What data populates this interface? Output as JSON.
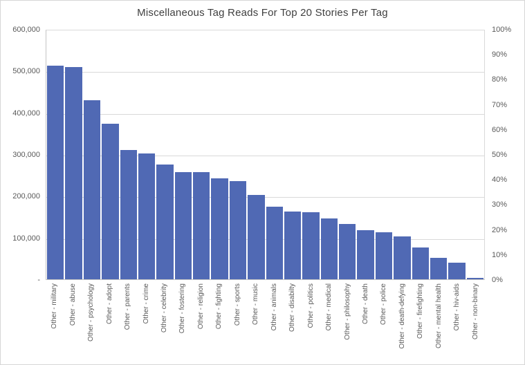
{
  "title": "Miscellaneous Tag Reads For Top 20 Stories Per Tag",
  "chart_data": {
    "type": "bar",
    "title": "Miscellaneous Tag Reads For Top 20 Stories Per Tag",
    "categories": [
      "Other - military",
      "Other - abuse",
      "Other - psychology",
      "Other - adopt",
      "Other - parents",
      "Other - crime",
      "Other - celebrity",
      "Other - fostering",
      "Other - religion",
      "Other - fighting",
      "Other - sports",
      "Other - music",
      "Other - animals",
      "Other - disabilty",
      "Other - politics",
      "Other - medical",
      "Other - philosophy",
      "Other - death",
      "Other - police",
      "Other - death-defying",
      "Other - firefighting",
      "Other - mental health",
      "Other - hiv-aids",
      "Other - non-binary"
    ],
    "values": [
      515000,
      512000,
      431000,
      375000,
      311000,
      303000,
      276000,
      258000,
      258000,
      243000,
      237000,
      204000,
      175000,
      164000,
      162000,
      147000,
      134000,
      119000,
      113000,
      104000,
      77000,
      52000,
      40000,
      4000
    ],
    "xlabel": "",
    "ylabel": "",
    "left_axis": {
      "min": 0,
      "max": 600000,
      "tick_step": 100000,
      "tick_labels_top_to_bottom": [
        "600,000",
        "500,000",
        "400,000",
        "300,000",
        "200,000",
        "100,000",
        "-"
      ]
    },
    "right_axis": {
      "min_label": "0%",
      "max_label": "100%",
      "tick_labels_top_to_bottom": [
        "100%",
        "90%",
        "80%",
        "70%",
        "60%",
        "50%",
        "40%",
        "30%",
        "20%",
        "10%",
        "0%"
      ]
    },
    "grid": "horizontal",
    "legend": false,
    "bar_color": "#5069B4",
    "gridline_color": "#d9d9d9",
    "axis_text_color": "#595959",
    "title_color": "#3f3f3f"
  }
}
